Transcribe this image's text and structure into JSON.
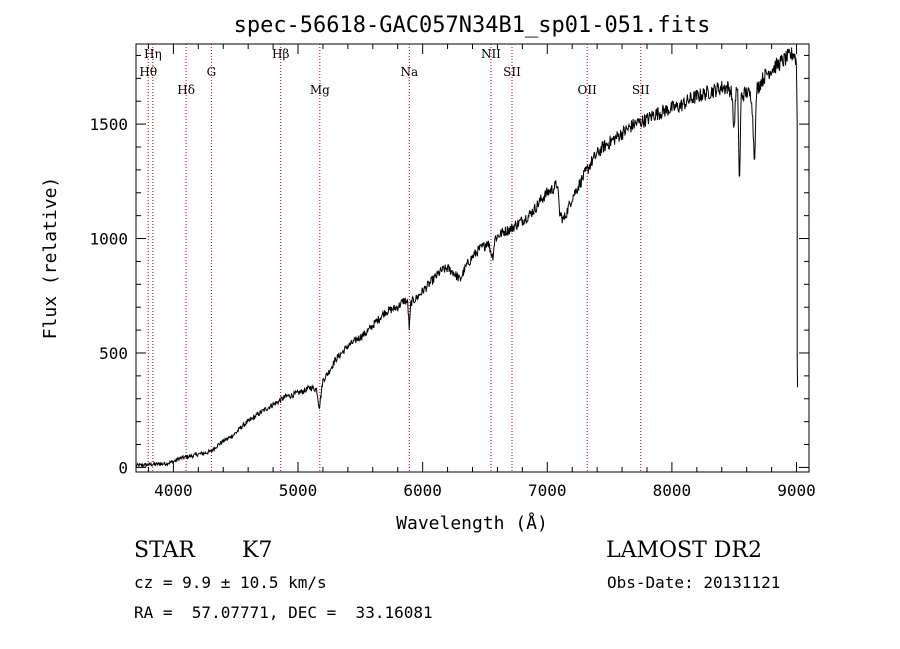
{
  "chart_data": {
    "type": "line",
    "title": "spec-56618-GAC057N34B1_sp01-051.fits",
    "xlabel": "Wavelength (Å)",
    "ylabel": "Flux (relative)",
    "xlim": [
      3700,
      9100
    ],
    "ylim": [
      -20,
      1850
    ],
    "xticks": [
      4000,
      5000,
      6000,
      7000,
      8000,
      9000
    ],
    "yticks": [
      0,
      500,
      1000,
      1500
    ],
    "grid": false,
    "series": [
      {
        "points": [
          [
            3700,
            8
          ],
          [
            3800,
            12
          ],
          [
            3900,
            15
          ],
          [
            3950,
            18
          ],
          [
            4000,
            25
          ],
          [
            4050,
            40
          ],
          [
            4100,
            45
          ],
          [
            4150,
            50
          ],
          [
            4200,
            58
          ],
          [
            4250,
            62
          ],
          [
            4300,
            70
          ],
          [
            4350,
            95
          ],
          [
            4400,
            115
          ],
          [
            4450,
            130
          ],
          [
            4500,
            150
          ],
          [
            4550,
            180
          ],
          [
            4600,
            200
          ],
          [
            4650,
            220
          ],
          [
            4700,
            240
          ],
          [
            4750,
            258
          ],
          [
            4800,
            275
          ],
          [
            4850,
            290
          ],
          [
            4900,
            310
          ],
          [
            4950,
            315
          ],
          [
            5000,
            325
          ],
          [
            5050,
            335
          ],
          [
            5100,
            350
          ],
          [
            5150,
            340
          ],
          [
            5170,
            260
          ],
          [
            5185,
            320
          ],
          [
            5200,
            380
          ],
          [
            5250,
            420
          ],
          [
            5300,
            470
          ],
          [
            5350,
            500
          ],
          [
            5400,
            530
          ],
          [
            5450,
            550
          ],
          [
            5500,
            570
          ],
          [
            5550,
            590
          ],
          [
            5600,
            620
          ],
          [
            5650,
            650
          ],
          [
            5700,
            680
          ],
          [
            5750,
            690
          ],
          [
            5800,
            700
          ],
          [
            5850,
            730
          ],
          [
            5880,
            720
          ],
          [
            5893,
            600
          ],
          [
            5905,
            720
          ],
          [
            5950,
            740
          ],
          [
            6000,
            770
          ],
          [
            6050,
            800
          ],
          [
            6100,
            830
          ],
          [
            6150,
            860
          ],
          [
            6200,
            870
          ],
          [
            6250,
            850
          ],
          [
            6300,
            820
          ],
          [
            6350,
            880
          ],
          [
            6400,
            920
          ],
          [
            6450,
            950
          ],
          [
            6500,
            970
          ],
          [
            6520,
            990
          ],
          [
            6550,
            940
          ],
          [
            6563,
            920
          ],
          [
            6580,
            1000
          ],
          [
            6600,
            1010
          ],
          [
            6650,
            1030
          ],
          [
            6700,
            1040
          ],
          [
            6750,
            1060
          ],
          [
            6800,
            1080
          ],
          [
            6850,
            1100
          ],
          [
            6900,
            1130
          ],
          [
            6950,
            1170
          ],
          [
            7000,
            1200
          ],
          [
            7050,
            1220
          ],
          [
            7080,
            1240
          ],
          [
            7100,
            1110
          ],
          [
            7130,
            1080
          ],
          [
            7160,
            1120
          ],
          [
            7200,
            1180
          ],
          [
            7250,
            1230
          ],
          [
            7300,
            1280
          ],
          [
            7350,
            1330
          ],
          [
            7400,
            1370
          ],
          [
            7450,
            1400
          ],
          [
            7500,
            1420
          ],
          [
            7550,
            1440
          ],
          [
            7600,
            1460
          ],
          [
            7650,
            1480
          ],
          [
            7700,
            1500
          ],
          [
            7750,
            1510
          ],
          [
            7800,
            1520
          ],
          [
            7850,
            1540
          ],
          [
            7900,
            1550
          ],
          [
            7950,
            1560
          ],
          [
            8000,
            1570
          ],
          [
            8050,
            1575
          ],
          [
            8100,
            1590
          ],
          [
            8150,
            1610
          ],
          [
            8200,
            1620
          ],
          [
            8250,
            1630
          ],
          [
            8300,
            1640
          ],
          [
            8350,
            1650
          ],
          [
            8400,
            1660
          ],
          [
            8450,
            1660
          ],
          [
            8480,
            1640
          ],
          [
            8498,
            1470
          ],
          [
            8515,
            1650
          ],
          [
            8530,
            1620
          ],
          [
            8542,
            1200
          ],
          [
            8555,
            1620
          ],
          [
            8600,
            1640
          ],
          [
            8640,
            1620
          ],
          [
            8662,
            1340
          ],
          [
            8680,
            1650
          ],
          [
            8720,
            1690
          ],
          [
            8760,
            1720
          ],
          [
            8800,
            1740
          ],
          [
            8850,
            1760
          ],
          [
            8900,
            1780
          ],
          [
            8950,
            1800
          ],
          [
            8980,
            1810
          ],
          [
            8995,
            1780
          ],
          [
            9000,
            1750
          ]
        ]
      }
    ],
    "lines": [
      {
        "label": "Hη",
        "x": 3835
      },
      {
        "label": "Hθ",
        "x": 3798
      },
      {
        "label": "Hδ",
        "x": 4102
      },
      {
        "label": "G",
        "x": 4305
      },
      {
        "label": "Hβ",
        "x": 4861
      },
      {
        "label": "Mg",
        "x": 5175
      },
      {
        "label": "Na",
        "x": 5893
      },
      {
        "label": "NII",
        "x": 6548
      },
      {
        "label": "SII",
        "x": 6717
      },
      {
        "label": "OII",
        "x": 7320
      },
      {
        "label": "SII",
        "x": 7750
      }
    ]
  },
  "info": {
    "object_class": "STAR",
    "subclass": "K7",
    "survey": "LAMOST DR2",
    "redshift": "cz = 9.9 ± 10.5 km/s",
    "obs_date": "Obs-Date: 20131121",
    "coords": "RA =  57.07771, DEC =  33.16081"
  }
}
